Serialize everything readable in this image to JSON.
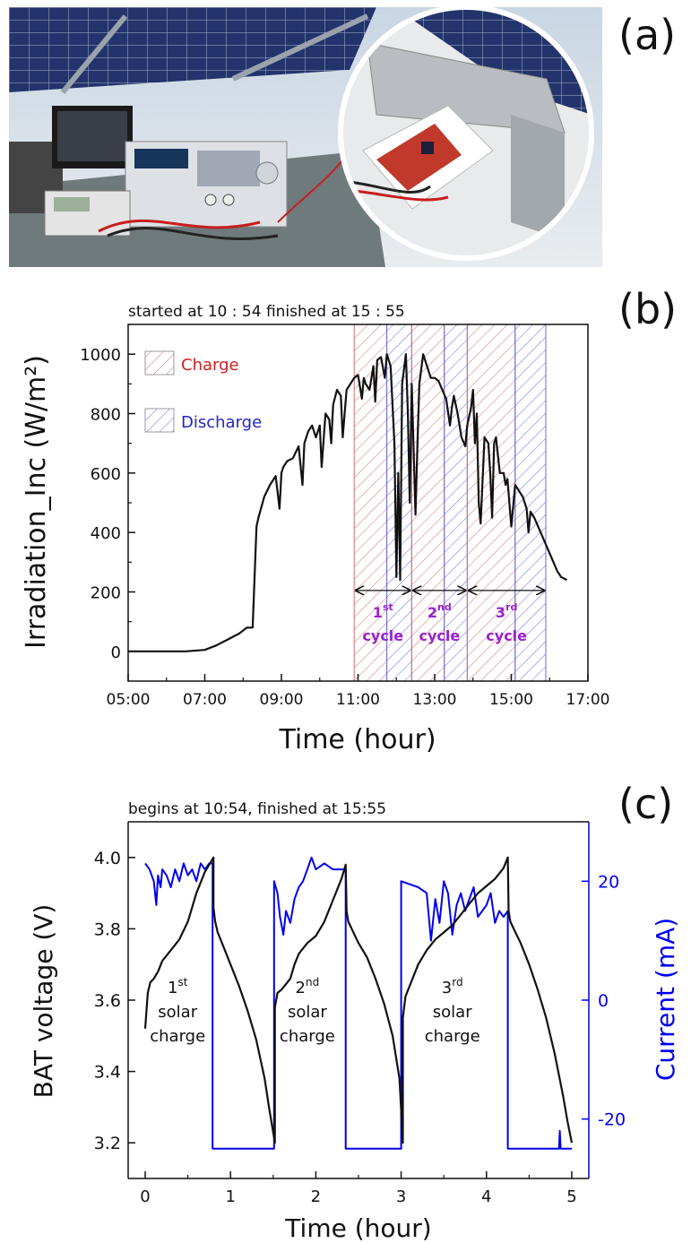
{
  "panels": {
    "a": {
      "label": "(a)"
    },
    "b": {
      "label": "(b)"
    },
    "c": {
      "label": "(c)"
    }
  },
  "chart_data": [
    {
      "type": "line",
      "panel": "b",
      "title": "started at 10 : 54 finished at 15 : 55",
      "xlabel": "Time (hour)",
      "ylabel": "Irradiation_Inc (W/m²)",
      "xlim": [
        5.0,
        17.0
      ],
      "ylim": [
        -100,
        1100
      ],
      "x_ticks": [
        5,
        7,
        9,
        11,
        13,
        15,
        17
      ],
      "x_tick_labels": [
        "05:00",
        "07:00",
        "09:00",
        "11:00",
        "13:00",
        "15:00",
        "17:00"
      ],
      "y_ticks": [
        0,
        200,
        400,
        600,
        800,
        1000
      ],
      "y_tick_labels": [
        "0",
        "200",
        "400",
        "600",
        "800",
        "1000"
      ],
      "legend": [
        {
          "label": "Charge",
          "color": "#cc2222",
          "hatch": "red"
        },
        {
          "label": "Discharge",
          "color": "#2222cc",
          "hatch": "blue"
        }
      ],
      "legend_position": "top-left",
      "regions": [
        {
          "kind": "charge",
          "x0": 10.9,
          "x1": 11.75
        },
        {
          "kind": "discharge",
          "x0": 11.75,
          "x1": 12.4
        },
        {
          "kind": "charge",
          "x0": 12.4,
          "x1": 13.25
        },
        {
          "kind": "discharge",
          "x0": 13.25,
          "x1": 13.85
        },
        {
          "kind": "charge",
          "x0": 13.85,
          "x1": 15.1
        },
        {
          "kind": "discharge",
          "x0": 15.1,
          "x1": 15.9
        }
      ],
      "cycles": [
        {
          "num": "1",
          "sup": "st",
          "word": "cycle",
          "x0": 10.9,
          "x1": 12.4
        },
        {
          "num": "2",
          "sup": "nd",
          "word": "cycle",
          "x0": 12.4,
          "x1": 13.85
        },
        {
          "num": "3",
          "sup": "rd",
          "word": "cycle",
          "x0": 13.85,
          "x1": 15.9
        }
      ],
      "cycle_arrow_y": 205,
      "cycle_color": "#9a22cc",
      "series": [
        {
          "name": "Irradiation",
          "color": "#111111",
          "x": [
            5.0,
            5.5,
            6.0,
            6.5,
            7.0,
            7.3,
            7.6,
            7.9,
            8.1,
            8.25,
            8.35,
            8.4,
            8.55,
            8.7,
            8.85,
            8.95,
            9.0,
            9.05,
            9.15,
            9.3,
            9.45,
            9.55,
            9.6,
            9.7,
            9.8,
            9.9,
            10.0,
            10.05,
            10.15,
            10.25,
            10.3,
            10.35,
            10.45,
            10.55,
            10.6,
            10.7,
            10.8,
            10.9,
            11.0,
            11.1,
            11.15,
            11.2,
            11.3,
            11.4,
            11.45,
            11.5,
            11.6,
            11.7,
            11.75,
            11.85,
            11.95,
            12.0,
            12.05,
            12.1,
            12.15,
            12.25,
            12.3,
            12.35,
            12.4,
            12.5,
            12.55,
            12.6,
            12.7,
            12.8,
            12.9,
            13.0,
            13.1,
            13.2,
            13.3,
            13.4,
            13.45,
            13.5,
            13.6,
            13.7,
            13.8,
            13.85,
            13.95,
            14.0,
            14.05,
            14.1,
            14.15,
            14.2,
            14.3,
            14.4,
            14.45,
            14.5,
            14.55,
            14.6,
            14.7,
            14.8,
            14.85,
            14.9,
            15.0,
            15.1,
            15.2,
            15.3,
            15.4,
            15.45,
            15.5,
            15.6,
            15.7,
            15.8,
            15.9,
            16.0,
            16.1,
            16.2,
            16.3,
            16.45
          ],
          "y": [
            0,
            0,
            0,
            0,
            5,
            20,
            40,
            60,
            80,
            80,
            420,
            450,
            520,
            560,
            590,
            480,
            600,
            620,
            640,
            650,
            690,
            560,
            700,
            740,
            760,
            720,
            760,
            620,
            800,
            780,
            700,
            830,
            880,
            860,
            720,
            880,
            900,
            920,
            930,
            850,
            920,
            900,
            880,
            960,
            840,
            980,
            990,
            920,
            1000,
            960,
            700,
            250,
            600,
            240,
            900,
            1000,
            800,
            500,
            900,
            460,
            700,
            900,
            1000,
            960,
            920,
            920,
            910,
            880,
            850,
            760,
            820,
            860,
            800,
            720,
            690,
            760,
            820,
            880,
            700,
            800,
            500,
            430,
            720,
            700,
            600,
            450,
            700,
            720,
            600,
            600,
            560,
            580,
            420,
            560,
            540,
            520,
            480,
            400,
            470,
            450,
            420,
            390,
            360,
            330,
            300,
            270,
            250,
            240
          ]
        }
      ]
    },
    {
      "type": "line",
      "panel": "c",
      "title": "begins at 10:54, finished at 15:55",
      "xlabel": "Time (hour)",
      "ylabel_left": "BAT voltage (V)",
      "ylabel_right": "Current (mA)",
      "xlim": [
        -0.2,
        5.2
      ],
      "ylim_left": [
        3.1,
        4.1
      ],
      "ylim_right": [
        -30.0,
        30.0
      ],
      "x_ticks": [
        0,
        1,
        2,
        3,
        4,
        5
      ],
      "x_tick_labels": [
        "0",
        "1",
        "2",
        "3",
        "4",
        "5"
      ],
      "y_ticks_left": [
        3.2,
        3.4,
        3.6,
        3.8,
        4.0
      ],
      "y_tick_labels_left": [
        "3.2",
        "3.4",
        "3.6",
        "3.8",
        "4.0"
      ],
      "y_ticks_right": [
        -20,
        0,
        20
      ],
      "y_tick_labels_right": [
        "-20",
        "0",
        "20"
      ],
      "annotations": [
        {
          "num": "1",
          "sup": "st",
          "line2": "solar",
          "line3": "charge",
          "x": 0.38,
          "y": 3.62
        },
        {
          "num": "2",
          "sup": "nd",
          "line2": "solar",
          "line3": "charge",
          "x": 1.9,
          "y": 3.62
        },
        {
          "num": "3",
          "sup": "rd",
          "line2": "solar",
          "line3": "charge",
          "x": 3.6,
          "y": 3.62
        }
      ],
      "series": [
        {
          "name": "BAT voltage",
          "axis": "left",
          "color": "#111111",
          "x": [
            0.0,
            0.03,
            0.06,
            0.1,
            0.15,
            0.2,
            0.3,
            0.4,
            0.5,
            0.55,
            0.6,
            0.65,
            0.7,
            0.75,
            0.8,
            0.8,
            0.82,
            0.85,
            0.9,
            1.0,
            1.1,
            1.2,
            1.3,
            1.4,
            1.45,
            1.5,
            1.52,
            1.52,
            1.55,
            1.6,
            1.7,
            1.75,
            1.8,
            1.9,
            2.0,
            2.1,
            2.2,
            2.3,
            2.35,
            2.36,
            2.38,
            2.42,
            2.5,
            2.6,
            2.7,
            2.8,
            2.9,
            2.98,
            3.02,
            3.02,
            3.05,
            3.1,
            3.2,
            3.3,
            3.4,
            3.5,
            3.6,
            3.7,
            3.8,
            3.9,
            4.0,
            4.1,
            4.2,
            4.25,
            4.26,
            4.28,
            4.32,
            4.4,
            4.5,
            4.6,
            4.7,
            4.8,
            4.9,
            4.95,
            5.0
          ],
          "y": [
            3.52,
            3.62,
            3.65,
            3.66,
            3.68,
            3.71,
            3.74,
            3.77,
            3.82,
            3.86,
            3.9,
            3.93,
            3.96,
            3.98,
            4.0,
            3.86,
            3.82,
            3.79,
            3.76,
            3.7,
            3.64,
            3.57,
            3.49,
            3.38,
            3.3,
            3.23,
            3.2,
            3.58,
            3.62,
            3.63,
            3.66,
            3.7,
            3.73,
            3.76,
            3.78,
            3.82,
            3.88,
            3.94,
            3.98,
            3.85,
            3.82,
            3.8,
            3.76,
            3.72,
            3.66,
            3.59,
            3.5,
            3.38,
            3.2,
            3.55,
            3.61,
            3.64,
            3.7,
            3.74,
            3.77,
            3.79,
            3.81,
            3.84,
            3.87,
            3.9,
            3.92,
            3.94,
            3.97,
            4.0,
            3.85,
            3.82,
            3.8,
            3.76,
            3.7,
            3.63,
            3.55,
            3.45,
            3.33,
            3.26,
            3.2
          ]
        },
        {
          "name": "Current",
          "axis": "right",
          "color": "#0000ee",
          "x": [
            0.0,
            0.05,
            0.1,
            0.13,
            0.15,
            0.18,
            0.2,
            0.25,
            0.3,
            0.35,
            0.4,
            0.45,
            0.5,
            0.55,
            0.6,
            0.65,
            0.7,
            0.75,
            0.79,
            0.79,
            0.85,
            1.0,
            1.2,
            1.4,
            1.51,
            1.51,
            1.55,
            1.58,
            1.62,
            1.65,
            1.7,
            1.75,
            1.8,
            1.85,
            1.9,
            1.95,
            2.0,
            2.1,
            2.2,
            2.35,
            2.35,
            2.5,
            2.7,
            2.9,
            3.0,
            3.0,
            3.2,
            3.3,
            3.35,
            3.4,
            3.45,
            3.5,
            3.55,
            3.6,
            3.65,
            3.7,
            3.75,
            3.8,
            3.85,
            3.9,
            4.0,
            4.05,
            4.1,
            4.15,
            4.2,
            4.25,
            4.25,
            4.3,
            4.5,
            4.7,
            4.85,
            4.86,
            4.87,
            4.95,
            5.0
          ],
          "y": [
            23,
            22,
            20,
            16,
            21,
            19,
            22,
            21,
            19,
            22,
            20,
            23,
            21,
            22,
            20,
            23,
            22,
            23,
            23,
            -25,
            -25,
            -25,
            -25,
            -25,
            -25,
            20,
            18,
            14,
            11,
            15,
            13,
            17,
            19,
            20,
            22,
            24,
            22,
            23,
            22,
            22,
            -25,
            -25,
            -25,
            -25,
            -25,
            20,
            19,
            18,
            10,
            17,
            13,
            20,
            18,
            11,
            16,
            18,
            15,
            17,
            19,
            14,
            16,
            18,
            13,
            15,
            14,
            15,
            -25,
            -25,
            -25,
            -25,
            -25,
            -22,
            -25,
            -25,
            -25
          ]
        }
      ]
    }
  ]
}
